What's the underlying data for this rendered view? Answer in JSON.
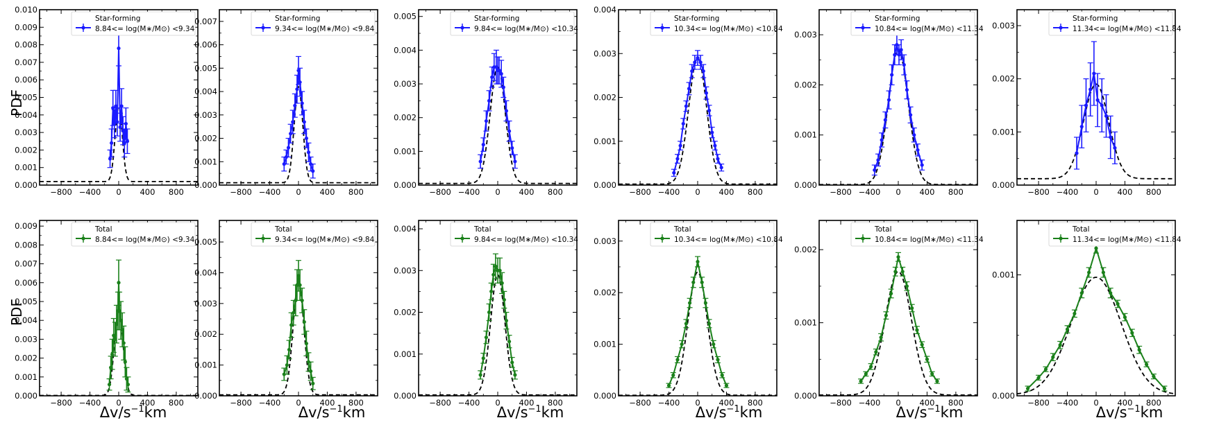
{
  "figure": {
    "ylabel": "PDF",
    "xlabel_parts": [
      "Δv/s",
      "−1",
      "km"
    ],
    "xticks": [
      -800,
      -400,
      0,
      400,
      800
    ],
    "xlim": [
      -1100,
      1100
    ],
    "colors": {
      "star_forming": "#1a1aff",
      "total": "#1a801a",
      "fit": "#000000"
    }
  },
  "chart_data": [
    {
      "type": "line",
      "row": "top",
      "legend_title": "Star-forming",
      "legend_label": "8.84<= log(M∗/M⊙) <9.34",
      "ylim": [
        0,
        0.01
      ],
      "yticks": [
        "0.000",
        "0.001",
        "0.002",
        "0.003",
        "0.004",
        "0.005",
        "0.006",
        "0.007",
        "0.008",
        "0.009",
        "0.010"
      ],
      "fit": {
        "sigma": 50,
        "peak": 0.0045,
        "floor": 0.0002
      },
      "x": [
        -120,
        -100,
        -80,
        -60,
        -40,
        -20,
        0,
        20,
        40,
        60,
        80,
        100,
        120
      ],
      "y": [
        0.0015,
        0.0024,
        0.0044,
        0.0035,
        0.0045,
        0.0036,
        0.0078,
        0.0033,
        0.0045,
        0.0031,
        0.0024,
        0.0035,
        0.0025
      ],
      "err": [
        0.0005,
        0.0008,
        0.001,
        0.0008,
        0.0009,
        0.0008,
        0.001,
        0.0008,
        0.001,
        0.0008,
        0.0008,
        0.0009,
        0.0007
      ]
    },
    {
      "type": "line",
      "row": "top",
      "legend_title": "Star-forming",
      "legend_label": "9.34<= log(M∗/M⊙) <9.84",
      "ylim": [
        0,
        0.0075
      ],
      "yticks": [
        "0.000",
        "0.001",
        "0.002",
        "0.003",
        "0.004",
        "0.005",
        "0.006",
        "0.007"
      ],
      "fit": {
        "sigma": 60,
        "peak": 0.0042,
        "floor": 0.0001
      },
      "x": [
        -200,
        -170,
        -140,
        -110,
        -80,
        -50,
        -20,
        0,
        20,
        50,
        80,
        110,
        140,
        170,
        200
      ],
      "y": [
        0.0009,
        0.0012,
        0.0016,
        0.0022,
        0.0027,
        0.0034,
        0.0041,
        0.0049,
        0.0044,
        0.0035,
        0.0027,
        0.002,
        0.0014,
        0.0009,
        0.0006
      ],
      "err": [
        0.0003,
        0.0003,
        0.0004,
        0.0004,
        0.0005,
        0.0005,
        0.0006,
        0.0006,
        0.0006,
        0.0005,
        0.0005,
        0.0004,
        0.0004,
        0.0003,
        0.0003
      ]
    },
    {
      "type": "line",
      "row": "top",
      "legend_title": "Star-forming",
      "legend_label": "9.84<= log(M∗/M⊙) <10.34",
      "ylim": [
        0,
        0.0052
      ],
      "yticks": [
        "0.000",
        "0.001",
        "0.002",
        "0.003",
        "0.004",
        "0.005"
      ],
      "fit": {
        "sigma": 105,
        "peak": 0.0035,
        "floor": 5e-05
      },
      "x": [
        -240,
        -200,
        -160,
        -120,
        -80,
        -50,
        -20,
        0,
        20,
        50,
        80,
        120,
        160,
        200,
        240
      ],
      "y": [
        0.0007,
        0.0012,
        0.0019,
        0.0025,
        0.0032,
        0.0035,
        0.0035,
        0.0034,
        0.0034,
        0.0033,
        0.0029,
        0.0022,
        0.0016,
        0.0011,
        0.0007
      ],
      "err": [
        0.0002,
        0.0002,
        0.0003,
        0.0003,
        0.0003,
        0.0004,
        0.0005,
        0.0004,
        0.0004,
        0.0004,
        0.0003,
        0.0003,
        0.0003,
        0.0002,
        0.0002
      ]
    },
    {
      "type": "line",
      "row": "top",
      "legend_title": "Star-forming",
      "legend_label": "10.34<= log(M∗/M⊙) <10.84",
      "ylim": [
        0,
        0.004
      ],
      "yticks": [
        "0.000",
        "0.001",
        "0.002",
        "0.003",
        "0.004"
      ],
      "fit": {
        "sigma": 125,
        "peak": 0.0029,
        "floor": 2e-05
      },
      "x": [
        -330,
        -280,
        -240,
        -200,
        -160,
        -120,
        -80,
        -40,
        0,
        40,
        80,
        120,
        160,
        200,
        240,
        280,
        330
      ],
      "y": [
        0.00028,
        0.0006,
        0.0009,
        0.0014,
        0.0018,
        0.0022,
        0.0026,
        0.0028,
        0.0029,
        0.0028,
        0.0026,
        0.0021,
        0.0017,
        0.0012,
        0.0009,
        0.0006,
        0.0004
      ],
      "err": [
        8e-05,
        0.0001,
        0.0001,
        0.00012,
        0.00012,
        0.00014,
        0.00015,
        0.00016,
        0.00017,
        0.00016,
        0.00015,
        0.00014,
        0.00012,
        0.00012,
        0.0001,
        0.0001,
        8e-05
      ]
    },
    {
      "type": "line",
      "row": "top",
      "legend_title": "Star-forming",
      "legend_label": "10.84<= log(M∗/M⊙) <11.34",
      "ylim": [
        0,
        0.0035
      ],
      "yticks": [
        "0.000",
        "0.001",
        "0.002",
        "0.003"
      ],
      "fit": {
        "sigma": 140,
        "peak": 0.0027,
        "floor": 1e-05
      },
      "x": [
        -330,
        -280,
        -230,
        -180,
        -130,
        -90,
        -50,
        -20,
        10,
        40,
        80,
        120,
        170,
        220,
        270,
        330
      ],
      "y": [
        0.0003,
        0.0005,
        0.0009,
        0.0013,
        0.0017,
        0.0022,
        0.0026,
        0.0028,
        0.0026,
        0.0027,
        0.0024,
        0.0019,
        0.0014,
        0.001,
        0.0007,
        0.0004
      ],
      "err": [
        0.0001,
        0.00012,
        0.00014,
        0.00016,
        0.00018,
        0.0002,
        0.0002,
        0.0002,
        0.0002,
        0.0002,
        0.0002,
        0.00018,
        0.00016,
        0.00014,
        0.00012,
        0.0001
      ]
    },
    {
      "type": "line",
      "row": "top",
      "legend_title": "Star-forming",
      "legend_label": "11.34<= log(M∗/M⊙) <11.84",
      "ylim": [
        0,
        0.0033
      ],
      "yticks": [
        "0.000",
        "0.001",
        "0.002",
        "0.003"
      ],
      "fit": {
        "sigma": 175,
        "peak": 0.0019,
        "floor": 0.00012
      },
      "x": [
        -270,
        -200,
        -140,
        -80,
        -30,
        20,
        80,
        140,
        200,
        260
      ],
      "y": [
        0.0006,
        0.0011,
        0.0015,
        0.0018,
        0.0021,
        0.0016,
        0.0015,
        0.0013,
        0.0009,
        0.0007
      ],
      "err": [
        0.0003,
        0.0004,
        0.0005,
        0.0005,
        0.0006,
        0.0005,
        0.0005,
        0.0004,
        0.0004,
        0.0003
      ]
    },
    {
      "type": "line",
      "row": "bottom",
      "legend_title": "Total",
      "legend_label": "8.84<= log(M∗/M⊙) <9.34",
      "ylim": [
        0,
        0.0093
      ],
      "yticks": [
        "0.000",
        "0.001",
        "0.002",
        "0.003",
        "0.004",
        "0.005",
        "0.006",
        "0.007",
        "0.008",
        "0.009"
      ],
      "fit": {
        "sigma": 60,
        "peak": 0.0045,
        "floor": 2e-05
      },
      "x": [
        -130,
        -110,
        -90,
        -70,
        -50,
        -30,
        -10,
        0,
        10,
        30,
        50,
        70,
        90,
        110,
        130
      ],
      "y": [
        0.0006,
        0.0015,
        0.0022,
        0.0032,
        0.003,
        0.0038,
        0.0045,
        0.006,
        0.0045,
        0.004,
        0.0035,
        0.0028,
        0.0018,
        0.0009,
        0.0006
      ],
      "err": [
        0.0003,
        0.0006,
        0.0008,
        0.0009,
        0.0009,
        0.001,
        0.001,
        0.0012,
        0.001,
        0.001,
        0.0009,
        0.0009,
        0.0008,
        0.0006,
        0.0004
      ]
    },
    {
      "type": "line",
      "row": "bottom",
      "legend_title": "Total",
      "legend_label": "9.34<= log(M∗/M⊙) <9.84",
      "ylim": [
        0,
        0.0057
      ],
      "yticks": [
        "0.000",
        "0.001",
        "0.002",
        "0.003",
        "0.004",
        "0.005"
      ],
      "fit": {
        "sigma": 75,
        "peak": 0.0037,
        "floor": 3e-05
      },
      "x": [
        -200,
        -160,
        -130,
        -100,
        -70,
        -40,
        -20,
        0,
        20,
        50,
        80,
        110,
        140,
        170,
        200
      ],
      "y": [
        0.0007,
        0.001,
        0.0015,
        0.0023,
        0.0027,
        0.0031,
        0.0036,
        0.0039,
        0.0036,
        0.0031,
        0.0024,
        0.0017,
        0.0011,
        0.0008,
        0.0004
      ],
      "err": [
        0.0002,
        0.0003,
        0.0003,
        0.0004,
        0.0004,
        0.0005,
        0.0005,
        0.0005,
        0.0005,
        0.0004,
        0.0004,
        0.0004,
        0.0003,
        0.0003,
        0.0002
      ]
    },
    {
      "type": "line",
      "row": "bottom",
      "legend_title": "Total",
      "legend_label": "9.84<= log(M∗/M⊙) <10.34",
      "ylim": [
        0,
        0.0042
      ],
      "yticks": [
        "0.000",
        "0.001",
        "0.002",
        "0.003",
        "0.004"
      ],
      "fit": {
        "sigma": 100,
        "peak": 0.0029,
        "floor": 2e-05
      },
      "x": [
        -240,
        -200,
        -160,
        -120,
        -90,
        -60,
        -30,
        0,
        30,
        60,
        90,
        120,
        160,
        200,
        240
      ],
      "y": [
        0.0005,
        0.0009,
        0.0014,
        0.002,
        0.0025,
        0.0029,
        0.0031,
        0.003,
        0.003,
        0.0027,
        0.0023,
        0.0018,
        0.0013,
        0.0008,
        0.0005
      ],
      "err": [
        0.0001,
        0.00012,
        0.00015,
        0.0002,
        0.0002,
        0.00025,
        0.0003,
        0.0003,
        0.0003,
        0.00025,
        0.0002,
        0.0002,
        0.00015,
        0.00012,
        0.0001
      ]
    },
    {
      "type": "line",
      "row": "bottom",
      "legend_title": "Total",
      "legend_label": "10.34<= log(M∗/M⊙) <10.84",
      "ylim": [
        0,
        0.0034
      ],
      "yticks": [
        "0.000",
        "0.001",
        "0.002",
        "0.003"
      ],
      "fit": {
        "sigma": 135,
        "peak": 0.0024,
        "floor": 1e-05
      },
      "x": [
        -400,
        -340,
        -280,
        -220,
        -160,
        -110,
        -60,
        0,
        60,
        110,
        160,
        220,
        280,
        340,
        400
      ],
      "y": [
        0.0002,
        0.0004,
        0.0007,
        0.001,
        0.0014,
        0.0018,
        0.0022,
        0.0026,
        0.0022,
        0.0018,
        0.0014,
        0.001,
        0.0007,
        0.0004,
        0.0002
      ],
      "err": [
        4e-05,
        5e-05,
        6e-05,
        7e-05,
        8e-05,
        9e-05,
        0.0001,
        0.0001,
        0.0001,
        9e-05,
        8e-05,
        7e-05,
        6e-05,
        5e-05,
        4e-05
      ]
    },
    {
      "type": "line",
      "row": "bottom",
      "legend_title": "Total",
      "legend_label": "10.84<= log(M∗/M⊙) <11.34",
      "ylim": [
        0,
        0.0024
      ],
      "yticks": [
        "0.000",
        "0.001",
        "0.002"
      ],
      "fit": {
        "sigma": 185,
        "peak": 0.0017,
        "floor": 1e-05
      },
      "x": [
        -520,
        -450,
        -380,
        -310,
        -240,
        -170,
        -100,
        -40,
        0,
        60,
        120,
        190,
        260,
        330,
        400,
        470,
        540
      ],
      "y": [
        0.0002,
        0.0003,
        0.0004,
        0.0006,
        0.0008,
        0.0011,
        0.0014,
        0.0017,
        0.0019,
        0.0017,
        0.0015,
        0.0012,
        0.0009,
        0.0007,
        0.0005,
        0.0003,
        0.0002
      ],
      "err": [
        3e-05,
        3e-05,
        4e-05,
        4e-05,
        5e-05,
        5e-05,
        6e-05,
        6e-05,
        6e-05,
        6e-05,
        6e-05,
        5e-05,
        5e-05,
        4e-05,
        4e-05,
        3e-05,
        3e-05
      ]
    },
    {
      "type": "line",
      "row": "bottom",
      "legend_title": "Total",
      "legend_label": "11.34<= log(M∗/M⊙) <11.84",
      "ylim": [
        0,
        0.00145
      ],
      "yticks": [
        "0.000",
        "0.001"
      ],
      "fit": {
        "sigma": 350,
        "peak": 0.00098,
        "floor": 1e-05
      },
      "x": [
        -950,
        -800,
        -700,
        -600,
        -500,
        -400,
        -300,
        -200,
        -100,
        0,
        100,
        200,
        300,
        400,
        500,
        600,
        700,
        800,
        950
      ],
      "y": [
        6e-05,
        0.00015,
        0.00022,
        0.00032,
        0.00042,
        0.00055,
        0.00068,
        0.00085,
        0.00102,
        0.00122,
        0.00102,
        0.00085,
        0.00076,
        0.00065,
        0.00052,
        0.00038,
        0.00026,
        0.00016,
        6e-05
      ],
      "err": [
        2e-05,
        2e-05,
        2e-05,
        3e-05,
        3e-05,
        3e-05,
        3e-05,
        4e-05,
        4e-05,
        4e-05,
        4e-05,
        4e-05,
        3e-05,
        3e-05,
        3e-05,
        3e-05,
        2e-05,
        2e-05,
        2e-05
      ]
    }
  ]
}
